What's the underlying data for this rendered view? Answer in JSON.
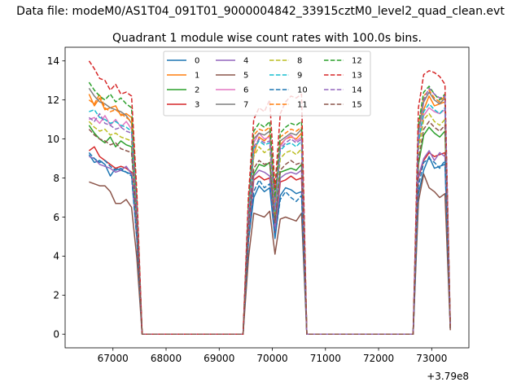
{
  "figure": {
    "suptitle": "Data file: modeM0/AS1T04_091T01_9000004842_33915cztM0_level2_quad_clean.evt"
  },
  "chart_data": {
    "type": "line",
    "title": "Quadrant 1 module wise count rates with 100.0s bins.",
    "xlabel": "",
    "ylabel": "",
    "x_offset_label": "+3.79e8",
    "xlim": [
      66100,
      73700
    ],
    "ylim": [
      -0.7,
      14.7
    ],
    "xticks": [
      67000,
      68000,
      69000,
      70000,
      71000,
      72000,
      73000
    ],
    "xtick_labels": [
      "67000",
      "68000",
      "69000",
      "70000",
      "71000",
      "72000",
      "73000"
    ],
    "yticks": [
      0,
      2,
      4,
      6,
      8,
      10,
      12,
      14
    ],
    "ytick_labels": [
      "0",
      "2",
      "4",
      "6",
      "8",
      "10",
      "12",
      "14"
    ],
    "legend_loc": "upper center",
    "x": [
      66550,
      66650,
      66750,
      66850,
      66950,
      67050,
      67150,
      67250,
      67350,
      67450,
      67550,
      67650,
      67750,
      67850,
      67950,
      68050,
      68150,
      68250,
      68350,
      68450,
      68550,
      68650,
      68750,
      68850,
      68950,
      69050,
      69150,
      69250,
      69350,
      69450,
      69550,
      69650,
      69750,
      69850,
      69950,
      70050,
      70150,
      70250,
      70350,
      70450,
      70550,
      70650,
      70750,
      70850,
      70950,
      71050,
      71150,
      71250,
      71350,
      71450,
      71550,
      71650,
      71750,
      71850,
      71950,
      72050,
      72150,
      72250,
      72350,
      72450,
      72550,
      72650,
      72750,
      72850,
      72950,
      73050,
      73150,
      73250,
      73350
    ],
    "series": [
      {
        "name": "0",
        "color": "#1f77b4",
        "dash": "solid",
        "values": [
          9.2,
          8.8,
          8.9,
          8.7,
          8.1,
          8.5,
          8.4,
          8.3,
          8.2,
          4.9,
          0,
          0,
          0,
          0,
          0,
          0,
          0,
          0,
          0,
          0,
          0,
          0,
          0,
          0,
          0,
          0,
          0,
          0,
          0,
          0,
          4.8,
          7.0,
          7.6,
          7.3,
          7.5,
          4.9,
          7.1,
          7.5,
          7.4,
          7.2,
          7.3,
          0,
          0,
          0,
          0,
          0,
          0,
          0,
          0,
          0,
          0,
          0,
          0,
          0,
          0,
          0,
          0,
          0,
          0,
          0,
          0,
          0,
          7.2,
          8.4,
          9.1,
          8.5,
          8.6,
          8.7,
          0.3
        ]
      },
      {
        "name": "1",
        "color": "#ff7f0e",
        "dash": "solid",
        "values": [
          12.3,
          11.7,
          12.1,
          11.5,
          11.6,
          11.7,
          11.2,
          11.3,
          11.1,
          6.6,
          0,
          0,
          0,
          0,
          0,
          0,
          0,
          0,
          0,
          0,
          0,
          0,
          0,
          0,
          0,
          0,
          0,
          0,
          0,
          0,
          6.3,
          9.2,
          10.1,
          9.9,
          10.2,
          6.6,
          9.7,
          10.0,
          10.1,
          10.0,
          10.3,
          0,
          0,
          0,
          0,
          0,
          0,
          0,
          0,
          0,
          0,
          0,
          0,
          0,
          0,
          0,
          0,
          0,
          0,
          0,
          0,
          0,
          9.7,
          11.5,
          12.2,
          11.7,
          11.8,
          11.9,
          0.3
        ]
      },
      {
        "name": "2",
        "color": "#2ca02c",
        "dash": "solid",
        "values": [
          10.7,
          10.3,
          10.0,
          9.8,
          10.1,
          9.6,
          9.9,
          9.7,
          9.6,
          5.7,
          0,
          0,
          0,
          0,
          0,
          0,
          0,
          0,
          0,
          0,
          0,
          0,
          0,
          0,
          0,
          0,
          0,
          0,
          0,
          0,
          5.6,
          8.2,
          8.7,
          8.6,
          8.8,
          5.7,
          8.3,
          8.4,
          8.5,
          8.4,
          8.7,
          0,
          0,
          0,
          0,
          0,
          0,
          0,
          0,
          0,
          0,
          0,
          0,
          0,
          0,
          0,
          0,
          0,
          0,
          0,
          0,
          0,
          8.7,
          10.2,
          10.6,
          10.3,
          10.1,
          10.4,
          0.3
        ]
      },
      {
        "name": "3",
        "color": "#d62728",
        "dash": "solid",
        "values": [
          9.4,
          9.6,
          9.1,
          8.9,
          8.7,
          8.5,
          8.6,
          8.5,
          8.3,
          5.0,
          0,
          0,
          0,
          0,
          0,
          0,
          0,
          0,
          0,
          0,
          0,
          0,
          0,
          0,
          0,
          0,
          0,
          0,
          0,
          0,
          4.9,
          7.9,
          8.1,
          7.9,
          8.0,
          5.2,
          7.8,
          7.9,
          8.1,
          7.9,
          8.0,
          0,
          0,
          0,
          0,
          0,
          0,
          0,
          0,
          0,
          0,
          0,
          0,
          0,
          0,
          0,
          0,
          0,
          0,
          0,
          0,
          0,
          8.0,
          8.9,
          9.3,
          9.1,
          9.2,
          9.3,
          0.3
        ]
      },
      {
        "name": "4",
        "color": "#9467bd",
        "dash": "solid",
        "values": [
          9.1,
          9.0,
          8.7,
          8.6,
          8.5,
          8.3,
          8.4,
          8.6,
          8.2,
          5.0,
          0,
          0,
          0,
          0,
          0,
          0,
          0,
          0,
          0,
          0,
          0,
          0,
          0,
          0,
          0,
          0,
          0,
          0,
          0,
          0,
          5.1,
          8.1,
          8.4,
          8.3,
          8.1,
          5.3,
          8.0,
          8.2,
          8.3,
          8.2,
          8.4,
          0,
          0,
          0,
          0,
          0,
          0,
          0,
          0,
          0,
          0,
          0,
          0,
          0,
          0,
          0,
          0,
          0,
          0,
          0,
          0,
          0,
          8.1,
          9.0,
          9.4,
          8.9,
          9.3,
          9.1,
          0.3
        ]
      },
      {
        "name": "5",
        "color": "#8c564b",
        "dash": "solid",
        "values": [
          7.8,
          7.7,
          7.6,
          7.6,
          7.3,
          6.7,
          6.7,
          6.9,
          6.5,
          3.9,
          0,
          0,
          0,
          0,
          0,
          0,
          0,
          0,
          0,
          0,
          0,
          0,
          0,
          0,
          0,
          0,
          0,
          0,
          0,
          0,
          3.9,
          6.2,
          6.1,
          6.0,
          6.3,
          4.1,
          5.9,
          6.0,
          5.9,
          5.8,
          6.2,
          0,
          0,
          0,
          0,
          0,
          0,
          0,
          0,
          0,
          0,
          0,
          0,
          0,
          0,
          0,
          0,
          0,
          0,
          0,
          0,
          0,
          6.8,
          8.2,
          7.5,
          7.3,
          7.0,
          7.2,
          0.2
        ]
      },
      {
        "name": "6",
        "color": "#e377c2",
        "dash": "solid",
        "values": [
          11.0,
          11.1,
          10.8,
          11.2,
          10.7,
          11.0,
          10.6,
          10.9,
          10.5,
          6.3,
          0,
          0,
          0,
          0,
          0,
          0,
          0,
          0,
          0,
          0,
          0,
          0,
          0,
          0,
          0,
          0,
          0,
          0,
          0,
          0,
          6.1,
          9.8,
          10.3,
          10.0,
          10.1,
          6.4,
          9.6,
          10.0,
          10.2,
          9.9,
          10.1,
          0,
          0,
          0,
          0,
          0,
          0,
          0,
          0,
          0,
          0,
          0,
          0,
          0,
          0,
          0,
          0,
          0,
          0,
          0,
          0,
          0,
          9.9,
          11.2,
          11.6,
          11.4,
          11.3,
          11.5,
          0.3
        ]
      },
      {
        "name": "7",
        "color": "#7f7f7f",
        "dash": "solid",
        "values": [
          12.6,
          12.2,
          11.9,
          11.8,
          11.6,
          11.5,
          11.4,
          11.2,
          10.8,
          6.6,
          0,
          0,
          0,
          0,
          0,
          0,
          0,
          0,
          0,
          0,
          0,
          0,
          0,
          0,
          0,
          0,
          0,
          0,
          0,
          0,
          6.5,
          10.0,
          10.3,
          10.2,
          10.4,
          6.8,
          9.9,
          10.1,
          10.3,
          10.2,
          10.5,
          0,
          0,
          0,
          0,
          0,
          0,
          0,
          0,
          0,
          0,
          0,
          0,
          0,
          0,
          0,
          0,
          0,
          0,
          0,
          0,
          0,
          10.3,
          11.9,
          12.4,
          12.0,
          11.8,
          12.1,
          0.3
        ]
      },
      {
        "name": "8",
        "color": "#bcbd22",
        "dash": "dashed",
        "values": [
          10.9,
          10.6,
          10.4,
          10.5,
          10.2,
          10.3,
          10.1,
          10.0,
          9.9,
          5.9,
          0,
          0,
          0,
          0,
          0,
          0,
          0,
          0,
          0,
          0,
          0,
          0,
          0,
          0,
          0,
          0,
          0,
          0,
          0,
          0,
          5.8,
          9.1,
          9.6,
          9.3,
          9.5,
          6.1,
          9.0,
          9.3,
          9.4,
          9.2,
          9.5,
          0,
          0,
          0,
          0,
          0,
          0,
          0,
          0,
          0,
          0,
          0,
          0,
          0,
          0,
          0,
          0,
          0,
          0,
          0,
          0,
          0,
          9.4,
          11.0,
          11.3,
          10.9,
          10.7,
          11.0,
          0.3
        ]
      },
      {
        "name": "9",
        "color": "#17becf",
        "dash": "dashed",
        "values": [
          11.4,
          11.5,
          11.1,
          11.0,
          10.8,
          10.9,
          10.7,
          10.6,
          10.4,
          6.2,
          0,
          0,
          0,
          0,
          0,
          0,
          0,
          0,
          0,
          0,
          0,
          0,
          0,
          0,
          0,
          0,
          0,
          0,
          0,
          0,
          6.0,
          9.5,
          9.9,
          9.7,
          9.8,
          6.3,
          9.4,
          9.7,
          9.8,
          9.6,
          9.9,
          0,
          0,
          0,
          0,
          0,
          0,
          0,
          0,
          0,
          0,
          0,
          0,
          0,
          0,
          0,
          0,
          0,
          0,
          0,
          0,
          0,
          9.8,
          11.4,
          11.8,
          11.5,
          11.3,
          11.6,
          0.3
        ]
      },
      {
        "name": "10",
        "color": "#1f77b4",
        "dash": "dashed",
        "values": [
          9.3,
          9.0,
          8.8,
          8.9,
          8.6,
          8.4,
          8.5,
          8.3,
          8.1,
          4.9,
          0,
          0,
          0,
          0,
          0,
          0,
          0,
          0,
          0,
          0,
          0,
          0,
          0,
          0,
          0,
          0,
          0,
          0,
          0,
          0,
          4.8,
          7.3,
          7.9,
          7.5,
          7.7,
          5.0,
          6.9,
          7.3,
          7.0,
          6.8,
          7.1,
          0,
          0,
          0,
          0,
          0,
          0,
          0,
          0,
          0,
          0,
          0,
          0,
          0,
          0,
          0,
          0,
          0,
          0,
          0,
          0,
          0,
          7.6,
          8.8,
          9.0,
          8.8,
          8.5,
          8.9,
          0.3
        ]
      },
      {
        "name": "11",
        "color": "#ff7f0e",
        "dash": "dashed",
        "values": [
          12.0,
          11.8,
          12.3,
          11.6,
          11.4,
          11.5,
          11.3,
          11.1,
          10.9,
          6.5,
          0,
          0,
          0,
          0,
          0,
          0,
          0,
          0,
          0,
          0,
          0,
          0,
          0,
          0,
          0,
          0,
          0,
          0,
          0,
          0,
          6.4,
          10.2,
          10.5,
          10.4,
          10.6,
          6.7,
          10.1,
          10.3,
          10.5,
          10.4,
          10.6,
          0,
          0,
          0,
          0,
          0,
          0,
          0,
          0,
          0,
          0,
          0,
          0,
          0,
          0,
          0,
          0,
          0,
          0,
          0,
          0,
          0,
          10.6,
          12.2,
          12.5,
          12.1,
          11.9,
          12.2,
          0.3
        ]
      },
      {
        "name": "12",
        "color": "#2ca02c",
        "dash": "dashed",
        "values": [
          12.9,
          12.5,
          12.2,
          12.0,
          12.3,
          11.9,
          12.1,
          11.8,
          11.6,
          6.9,
          0,
          0,
          0,
          0,
          0,
          0,
          0,
          0,
          0,
          0,
          0,
          0,
          0,
          0,
          0,
          0,
          0,
          0,
          0,
          0,
          6.7,
          10.4,
          10.8,
          10.6,
          10.9,
          7.0,
          10.3,
          10.6,
          10.8,
          10.7,
          10.9,
          0,
          0,
          0,
          0,
          0,
          0,
          0,
          0,
          0,
          0,
          0,
          0,
          0,
          0,
          0,
          0,
          0,
          0,
          0,
          0,
          0,
          10.7,
          12.4,
          12.7,
          12.3,
          12.0,
          12.3,
          0.3
        ]
      },
      {
        "name": "13",
        "color": "#d62728",
        "dash": "dashed",
        "values": [
          14.0,
          13.6,
          13.1,
          13.0,
          12.5,
          12.8,
          12.3,
          12.4,
          12.2,
          7.3,
          0,
          0,
          0,
          0,
          0,
          0,
          0,
          0,
          0,
          0,
          0,
          0,
          0,
          0,
          0,
          0,
          0,
          0,
          0,
          0,
          7.1,
          11.0,
          11.6,
          11.4,
          12.0,
          7.5,
          11.3,
          11.9,
          12.2,
          12.1,
          12.3,
          0,
          0,
          0,
          0,
          0,
          0,
          0,
          0,
          0,
          0,
          0,
          0,
          0,
          0,
          0,
          0,
          0,
          0,
          0,
          0,
          0,
          11.6,
          13.3,
          13.5,
          13.4,
          13.2,
          12.8,
          0.4
        ]
      },
      {
        "name": "14",
        "color": "#9467bd",
        "dash": "dashed",
        "values": [
          11.1,
          10.9,
          11.3,
          10.8,
          10.7,
          10.5,
          10.6,
          10.4,
          10.3,
          6.2,
          0,
          0,
          0,
          0,
          0,
          0,
          0,
          0,
          0,
          0,
          0,
          0,
          0,
          0,
          0,
          0,
          0,
          0,
          0,
          0,
          6.1,
          9.6,
          10.0,
          9.8,
          9.9,
          6.4,
          9.5,
          9.8,
          10.0,
          9.8,
          10.0,
          0,
          0,
          0,
          0,
          0,
          0,
          0,
          0,
          0,
          0,
          0,
          0,
          0,
          0,
          0,
          0,
          0,
          0,
          0,
          0,
          0,
          10.2,
          12.0,
          12.6,
          12.3,
          12.1,
          12.2,
          0.3
        ]
      },
      {
        "name": "15",
        "color": "#8c564b",
        "dash": "dashed",
        "values": [
          10.5,
          10.2,
          10.0,
          9.9,
          9.7,
          9.8,
          9.5,
          9.4,
          9.3,
          5.6,
          0,
          0,
          0,
          0,
          0,
          0,
          0,
          0,
          0,
          0,
          0,
          0,
          0,
          0,
          0,
          0,
          0,
          0,
          0,
          0,
          5.5,
          8.5,
          8.9,
          8.7,
          8.8,
          5.7,
          8.4,
          8.7,
          8.9,
          8.7,
          8.8,
          0,
          0,
          0,
          0,
          0,
          0,
          0,
          0,
          0,
          0,
          0,
          0,
          0,
          0,
          0,
          0,
          0,
          0,
          0,
          0,
          0,
          8.9,
          10.5,
          10.9,
          10.6,
          10.4,
          10.7,
          0.3
        ]
      }
    ]
  }
}
